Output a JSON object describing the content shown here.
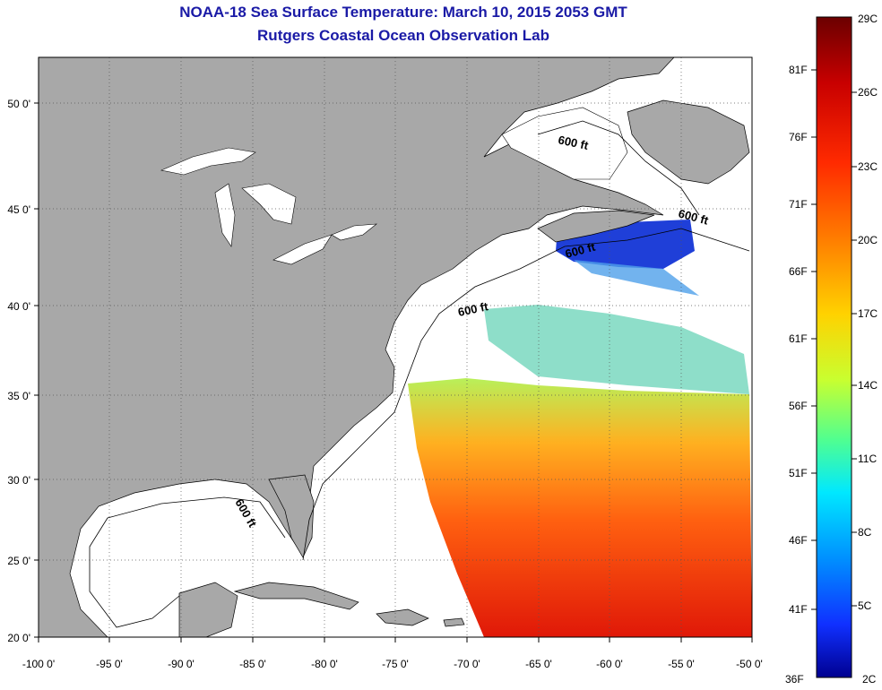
{
  "title": {
    "line1": "NOAA-18 Sea Surface Temperature:  March 10, 2015 2053 GMT",
    "line2": "Rutgers Coastal Ocean Observation Lab"
  },
  "axes": {
    "longitude_labels": [
      "-100 0'",
      "-95 0'",
      "-90 0'",
      "-85 0'",
      "-80 0'",
      "-75 0'",
      "-70 0'",
      "-65 0'",
      "-60 0'",
      "-55 0'",
      "-50 0'"
    ],
    "latitude_labels": [
      "50 0'",
      "45 0'",
      "40 0'",
      "35 0'",
      "30 0'",
      "25 0'",
      "20 0'"
    ],
    "lon_range": [
      -100,
      -50
    ],
    "lat_range": [
      20,
      52.5
    ]
  },
  "contour_labels": [
    "600 ft",
    "600 ft",
    "600 ft",
    "600 ft",
    "600 ft"
  ],
  "colorbar": {
    "fahrenheit": [
      "81F",
      "76F",
      "71F",
      "66F",
      "61F",
      "56F",
      "51F",
      "46F",
      "41F",
      "36F"
    ],
    "celsius": [
      "29C",
      "26C",
      "23C",
      "20C",
      "17C",
      "14C",
      "11C",
      "8C",
      "5C",
      "2C"
    ],
    "range_c": [
      2,
      29
    ],
    "gradient": [
      "#6b0000",
      "#c80000",
      "#ff2a00",
      "#ff8000",
      "#ffd200",
      "#c8ff30",
      "#50ff90",
      "#00e8ff",
      "#0090ff",
      "#1030ff",
      "#000090"
    ]
  },
  "colors": {
    "land": "#a8a8a8",
    "ocean": "#ffffff",
    "title": "#1a1aa6"
  }
}
